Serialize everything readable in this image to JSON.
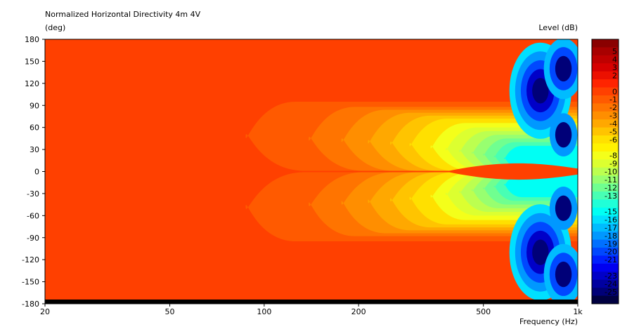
{
  "chart_data": {
    "type": "heatmap",
    "title": "Normalized Horizontal Directivity 4m 4V",
    "ylabel": "(deg)",
    "xlabel": "Frequency  (Hz)",
    "colorbar_label": "Level  (dB)",
    "x_scale": "log",
    "xlim": [
      20,
      1000
    ],
    "ylim": [
      -180,
      180
    ],
    "x_ticks": [
      {
        "value": 20,
        "label": "20"
      },
      {
        "value": 50,
        "label": "50"
      },
      {
        "value": 100,
        "label": "100"
      },
      {
        "value": 200,
        "label": "200"
      },
      {
        "value": 500,
        "label": "500"
      },
      {
        "value": 1000,
        "label": "1k"
      }
    ],
    "y_ticks": [
      {
        "value": 180,
        "label": "180"
      },
      {
        "value": 150,
        "label": "150"
      },
      {
        "value": 120,
        "label": "120"
      },
      {
        "value": 90,
        "label": "90"
      },
      {
        "value": 60,
        "label": "60"
      },
      {
        "value": 30,
        "label": "30"
      },
      {
        "value": 0,
        "label": "0"
      },
      {
        "value": -30,
        "label": "-30"
      },
      {
        "value": -60,
        "label": "-60"
      },
      {
        "value": -90,
        "label": "-90"
      },
      {
        "value": -120,
        "label": "-120"
      },
      {
        "value": -150,
        "label": "-150"
      },
      {
        "value": -180,
        "label": "-180"
      }
    ],
    "color_levels": [
      {
        "level": 6,
        "label": "",
        "color": "#8a0000"
      },
      {
        "level": 5,
        "label": "5",
        "color": "#a80000"
      },
      {
        "level": 4,
        "label": "4",
        "color": "#bf0000"
      },
      {
        "level": 3,
        "label": "3",
        "color": "#d60000"
      },
      {
        "level": 2,
        "label": "2",
        "color": "#ec1000"
      },
      {
        "level": 1,
        "label": "",
        "color": "#ff2400"
      },
      {
        "level": 0,
        "label": "0",
        "color": "#ff4000"
      },
      {
        "level": -1,
        "label": "-1",
        "color": "#ff5a00"
      },
      {
        "level": -2,
        "label": "-2",
        "color": "#ff7400"
      },
      {
        "level": -3,
        "label": "-3",
        "color": "#ff8e00"
      },
      {
        "level": -4,
        "label": "-4",
        "color": "#ffa800"
      },
      {
        "level": -5,
        "label": "-5",
        "color": "#ffc400"
      },
      {
        "level": -6,
        "label": "-6",
        "color": "#ffe000"
      },
      {
        "level": -7,
        "label": "",
        "color": "#fff200"
      },
      {
        "level": -8,
        "label": "-8",
        "color": "#f4ff1a"
      },
      {
        "level": -9,
        "label": "-9",
        "color": "#dcff30"
      },
      {
        "level": -10,
        "label": "-10",
        "color": "#bcff50"
      },
      {
        "level": -11,
        "label": "-11",
        "color": "#98ff70"
      },
      {
        "level": -12,
        "label": "-12",
        "color": "#70ff90"
      },
      {
        "level": -13,
        "label": "-13",
        "color": "#48ffb4"
      },
      {
        "level": -14,
        "label": "",
        "color": "#20ffd8"
      },
      {
        "level": -15,
        "label": "-15",
        "color": "#00fff4"
      },
      {
        "level": -16,
        "label": "-16",
        "color": "#00e0ff"
      },
      {
        "level": -17,
        "label": "-17",
        "color": "#00bcff"
      },
      {
        "level": -18,
        "label": "-18",
        "color": "#0098ff"
      },
      {
        "level": -19,
        "label": "-19",
        "color": "#0070ff"
      },
      {
        "level": -20,
        "label": "-20",
        "color": "#0048ff"
      },
      {
        "level": -21,
        "label": "-21",
        "color": "#0020ff"
      },
      {
        "level": -22,
        "label": "",
        "color": "#0000f0"
      },
      {
        "level": -23,
        "label": "-23",
        "color": "#0000c8"
      },
      {
        "level": -24,
        "label": "-24",
        "color": "#0000a0"
      },
      {
        "level": -25,
        "label": "-25",
        "color": "#000078"
      },
      {
        "level": -26,
        "label": "",
        "color": "#000040"
      }
    ],
    "level_bands": [
      {
        "level": 0,
        "color": "#ff4000",
        "f_start": 20,
        "half_width": 180
      },
      {
        "level": -1,
        "color": "#ff5a00",
        "f_start": 95,
        "half_width": 95
      },
      {
        "level": -2,
        "color": "#ff7400",
        "f_start": 150,
        "half_width": 88
      },
      {
        "level": -3,
        "color": "#ff8e00",
        "f_start": 190,
        "half_width": 84
      },
      {
        "level": -4,
        "color": "#ffa800",
        "f_start": 230,
        "half_width": 80
      },
      {
        "level": -5,
        "color": "#ffc400",
        "f_start": 270,
        "half_width": 76
      },
      {
        "level": -6,
        "color": "#ffe000",
        "f_start": 310,
        "half_width": 72
      },
      {
        "level": -8,
        "color": "#f4ff1a",
        "f_start": 360,
        "half_width": 66
      },
      {
        "level": -9,
        "color": "#dcff30",
        "f_start": 400,
        "half_width": 60
      },
      {
        "level": -10,
        "color": "#bcff50",
        "f_start": 440,
        "half_width": 55
      },
      {
        "level": -11,
        "color": "#98ff70",
        "f_start": 480,
        "half_width": 50
      },
      {
        "level": -12,
        "color": "#70ff90",
        "f_start": 520,
        "half_width": 45
      },
      {
        "level": -13,
        "color": "#48ffb4",
        "f_start": 560,
        "half_width": 40
      },
      {
        "level": -15,
        "color": "#00fff4",
        "f_start": 600,
        "half_width": 35
      }
    ],
    "nulls": [
      {
        "f": 760,
        "deg": 110,
        "rings": [
          "#00e0ff",
          "#0098ff",
          "#0048ff",
          "#0000c8",
          "#000078"
        ]
      },
      {
        "f": 760,
        "deg": -110,
        "rings": [
          "#00e0ff",
          "#0098ff",
          "#0048ff",
          "#0000c8",
          "#000078"
        ]
      },
      {
        "f": 900,
        "deg": 140,
        "rings": [
          "#00bcff",
          "#0048ff",
          "#000078"
        ]
      },
      {
        "f": 900,
        "deg": -140,
        "rings": [
          "#00bcff",
          "#0048ff",
          "#000078"
        ]
      },
      {
        "f": 900,
        "deg": 50,
        "rings": [
          "#0098ff",
          "#000078"
        ]
      },
      {
        "f": 900,
        "deg": -50,
        "rings": [
          "#0098ff",
          "#000078"
        ]
      }
    ]
  }
}
